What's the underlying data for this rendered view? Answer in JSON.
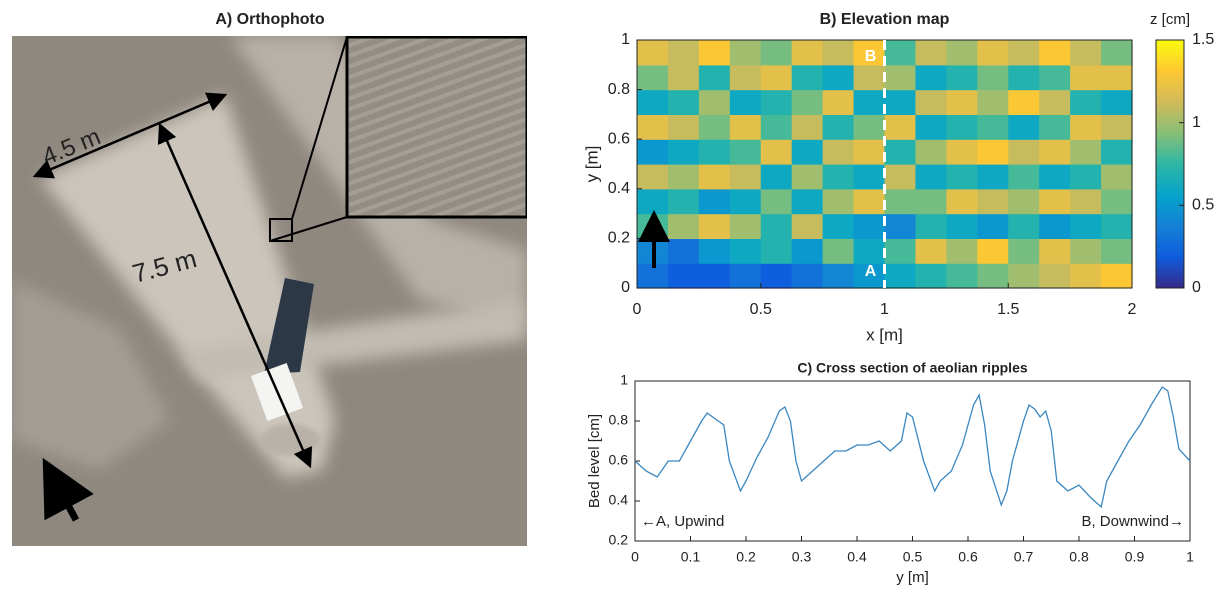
{
  "chart_data": [
    {
      "type": "image",
      "title": "A) Orthophoto",
      "annotations": [
        "4.5 m",
        "7.5 m"
      ]
    },
    {
      "type": "heatmap",
      "title": "B) Elevation map",
      "xlabel": "x [m]",
      "ylabel": "y [m]",
      "xlim": [
        0,
        2
      ],
      "ylim": [
        0,
        1
      ],
      "xticks": [
        0,
        0.5,
        1,
        1.5,
        2
      ],
      "yticks": [
        0,
        0.2,
        0.4,
        0.6,
        0.8,
        1
      ],
      "colorbar_label": "z [cm]",
      "clim": [
        0,
        1.5
      ],
      "cticks": [
        0,
        0.5,
        1,
        1.5
      ],
      "colormap": [
        "#352a87",
        "#0f5cdd",
        "#1481d6",
        "#06a4ca",
        "#2eb7a4",
        "#87bf77",
        "#d1bb59",
        "#fec832",
        "#f9fb0e"
      ],
      "section_x": 1,
      "section_labels": [
        "A",
        "B"
      ],
      "z": [
        [
          0.3,
          0.2,
          0.2,
          0.3,
          0.2,
          0.3,
          0.4,
          0.5,
          0.6,
          0.7,
          0.8,
          0.9,
          1.0,
          1.1,
          1.2,
          1.3
        ],
        [
          0.4,
          0.3,
          0.5,
          0.6,
          0.7,
          0.5,
          0.9,
          0.6,
          0.8,
          1.2,
          1.0,
          1.3,
          0.9,
          1.2,
          1.0,
          0.9
        ],
        [
          0.8,
          1.0,
          1.2,
          1.0,
          0.7,
          1.1,
          0.6,
          0.5,
          0.4,
          0.7,
          0.6,
          0.5,
          0.7,
          0.5,
          0.6,
          0.7
        ],
        [
          0.6,
          0.7,
          0.5,
          0.6,
          0.9,
          0.6,
          1.0,
          1.2,
          0.9,
          0.9,
          1.2,
          1.1,
          1.0,
          1.2,
          1.1,
          0.9
        ],
        [
          1.1,
          1.0,
          1.2,
          1.1,
          0.6,
          1.0,
          0.7,
          0.6,
          1.1,
          0.6,
          0.7,
          0.6,
          0.8,
          0.6,
          0.7,
          1.0
        ],
        [
          0.5,
          0.6,
          0.7,
          0.8,
          1.2,
          0.6,
          1.1,
          1.2,
          0.7,
          1.0,
          1.2,
          1.3,
          1.1,
          1.2,
          1.0,
          0.7
        ],
        [
          1.2,
          1.1,
          0.9,
          1.2,
          0.8,
          1.1,
          0.7,
          0.9,
          1.2,
          0.6,
          0.7,
          0.8,
          0.6,
          0.8,
          1.2,
          1.1
        ],
        [
          0.6,
          0.7,
          1.0,
          0.6,
          0.7,
          0.9,
          1.2,
          0.6,
          0.6,
          1.1,
          1.2,
          1.0,
          1.3,
          1.1,
          0.7,
          0.6
        ],
        [
          0.9,
          1.1,
          0.7,
          1.1,
          1.2,
          0.7,
          0.6,
          1.1,
          1.0,
          0.6,
          0.7,
          0.9,
          0.7,
          0.8,
          1.2,
          1.2
        ],
        [
          1.2,
          1.1,
          1.3,
          1.0,
          0.9,
          1.2,
          1.1,
          1.3,
          0.8,
          1.1,
          1.0,
          1.2,
          1.1,
          1.3,
          1.1,
          0.9
        ]
      ]
    },
    {
      "type": "line",
      "title": "C) Cross section of aeolian ripples",
      "xlabel": "y [m]",
      "ylabel": "Bed level [cm]",
      "xlim": [
        0,
        1
      ],
      "ylim": [
        0.2,
        1
      ],
      "xticks": [
        0,
        0.1,
        0.2,
        0.3,
        0.4,
        0.5,
        0.6,
        0.7,
        0.8,
        0.9,
        1
      ],
      "yticks": [
        0.2,
        0.4,
        0.6,
        0.8,
        1
      ],
      "color": "#3a87c0",
      "annotations": [
        "←A, Upwind",
        "B, Downwind→"
      ],
      "x": [
        0,
        0.02,
        0.04,
        0.06,
        0.08,
        0.1,
        0.12,
        0.13,
        0.15,
        0.16,
        0.17,
        0.19,
        0.2,
        0.22,
        0.24,
        0.26,
        0.27,
        0.28,
        0.29,
        0.3,
        0.32,
        0.34,
        0.36,
        0.38,
        0.4,
        0.42,
        0.44,
        0.46,
        0.48,
        0.49,
        0.5,
        0.52,
        0.54,
        0.55,
        0.57,
        0.59,
        0.61,
        0.62,
        0.63,
        0.64,
        0.66,
        0.67,
        0.68,
        0.7,
        0.71,
        0.72,
        0.73,
        0.74,
        0.75,
        0.76,
        0.78,
        0.8,
        0.82,
        0.84,
        0.85,
        0.87,
        0.89,
        0.91,
        0.93,
        0.95,
        0.96,
        0.97,
        0.98,
        1
      ],
      "values": [
        0.6,
        0.55,
        0.52,
        0.6,
        0.6,
        0.7,
        0.8,
        0.84,
        0.8,
        0.78,
        0.6,
        0.45,
        0.5,
        0.62,
        0.72,
        0.85,
        0.87,
        0.8,
        0.6,
        0.5,
        0.55,
        0.6,
        0.65,
        0.65,
        0.68,
        0.68,
        0.7,
        0.65,
        0.7,
        0.84,
        0.82,
        0.6,
        0.45,
        0.5,
        0.55,
        0.68,
        0.88,
        0.93,
        0.78,
        0.55,
        0.38,
        0.45,
        0.6,
        0.8,
        0.88,
        0.86,
        0.82,
        0.85,
        0.75,
        0.5,
        0.45,
        0.48,
        0.42,
        0.37,
        0.5,
        0.6,
        0.7,
        0.78,
        0.88,
        0.97,
        0.95,
        0.82,
        0.66,
        0.6
      ]
    }
  ]
}
